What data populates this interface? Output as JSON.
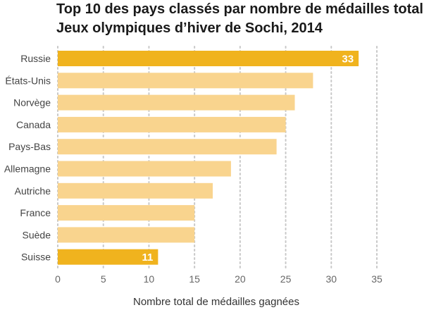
{
  "title_line1": "Top 10 des pays classés par nombre de médailles total",
  "title_line2": "Jeux olympiques d’hiver de Sochi, 2014",
  "chart_data": {
    "type": "bar",
    "orientation": "horizontal",
    "title": "Top 10 des pays classés par nombre de médailles total — Jeux olympiques d’hiver de Sochi, 2014",
    "categories": [
      "Russie",
      "États-Unis",
      "Norvège",
      "Canada",
      "Pays-Bas",
      "Allemagne",
      "Autriche",
      "France",
      "Suède",
      "Suisse"
    ],
    "values": [
      33,
      28,
      26,
      25,
      24,
      19,
      17,
      15,
      15,
      11
    ],
    "highlight": [
      true,
      false,
      false,
      false,
      false,
      false,
      false,
      false,
      false,
      true
    ],
    "data_labels": [
      "33",
      "",
      "",
      "",
      "",
      "",
      "",
      "",
      "",
      "11"
    ],
    "xlabel": "Nombre total de médailles gagnées",
    "ylabel": "",
    "xlim": [
      0,
      35
    ],
    "xticks": [
      0,
      5,
      10,
      15,
      20,
      25,
      30,
      35
    ],
    "grid": "vertical dotted",
    "colors": {
      "highlight": "#f0b31e",
      "normal": "#f9d48e",
      "grid": "#c8c8c8"
    }
  }
}
